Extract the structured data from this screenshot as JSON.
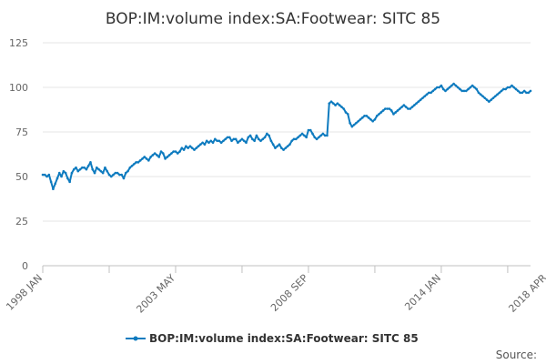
{
  "chart_data": {
    "type": "line",
    "title": "BOP:IM:volume index:SA:Footwear: SITC 85",
    "xlabel": "",
    "ylabel": "",
    "ylim": [
      0,
      125
    ],
    "yticks": [
      0,
      25,
      50,
      75,
      100,
      125
    ],
    "grid": true,
    "legend_position": "bottom",
    "x_start": "1998 JAN",
    "x_end": "2018 APR",
    "x_tick_labels": [
      "1998 JAN",
      "2003 MAY",
      "2008 SEP",
      "2014 JAN",
      "2018 APR"
    ],
    "x_tick_label_months": [
      0,
      64,
      128,
      192,
      243
    ],
    "x_minor_tick_months": [
      0,
      32,
      64,
      96,
      128,
      160,
      192,
      224,
      243
    ],
    "series": [
      {
        "name": "BOP:IM:volume index:SA:Footwear: SITC 85",
        "color": "#0e7bbf",
        "values": [
          51,
          51,
          50,
          51,
          47,
          43,
          46,
          49,
          52,
          50,
          53,
          52,
          49,
          47,
          52,
          54,
          55,
          53,
          54,
          55,
          55,
          54,
          56,
          58,
          54,
          52,
          55,
          54,
          53,
          52,
          55,
          53,
          51,
          50,
          51,
          52,
          52,
          51,
          51,
          49,
          52,
          53,
          55,
          56,
          57,
          58,
          58,
          59,
          60,
          61,
          60,
          59,
          61,
          62,
          63,
          62,
          61,
          64,
          63,
          60,
          61,
          62,
          63,
          64,
          64,
          63,
          64,
          66,
          65,
          67,
          66,
          67,
          66,
          65,
          66,
          67,
          68,
          69,
          68,
          70,
          69,
          70,
          69,
          71,
          70,
          70,
          69,
          70,
          71,
          72,
          72,
          70,
          71,
          71,
          69,
          70,
          71,
          70,
          69,
          72,
          73,
          71,
          70,
          73,
          71,
          70,
          71,
          72,
          74,
          73,
          70,
          68,
          66,
          67,
          68,
          66,
          65,
          66,
          67,
          68,
          70,
          71,
          71,
          72,
          73,
          74,
          73,
          72,
          76,
          76,
          74,
          72,
          71,
          72,
          73,
          74,
          73,
          73,
          91,
          92,
          91,
          90,
          91,
          90,
          89,
          88,
          86,
          85,
          80,
          78,
          79,
          80,
          81,
          82,
          83,
          84,
          84,
          83,
          82,
          81,
          82,
          84,
          85,
          86,
          87,
          88,
          88,
          88,
          87,
          85,
          86,
          87,
          88,
          89,
          90,
          89,
          88,
          88,
          89,
          90,
          91,
          92,
          93,
          94,
          95,
          96,
          97,
          97,
          98,
          99,
          100,
          100,
          101,
          99,
          98,
          99,
          100,
          101,
          102,
          101,
          100,
          99,
          98,
          98,
          98,
          99,
          100,
          101,
          100,
          99,
          97,
          96,
          95,
          94,
          93,
          92,
          93,
          94,
          95,
          96,
          97,
          98,
          99,
          99,
          100,
          100,
          101,
          100,
          99,
          98,
          97,
          97,
          98,
          97,
          97,
          98
        ]
      }
    ]
  },
  "legend": {
    "label": "BOP:IM:volume index:SA:Footwear: SITC 85"
  },
  "footer": {
    "source_label": "Source:"
  }
}
